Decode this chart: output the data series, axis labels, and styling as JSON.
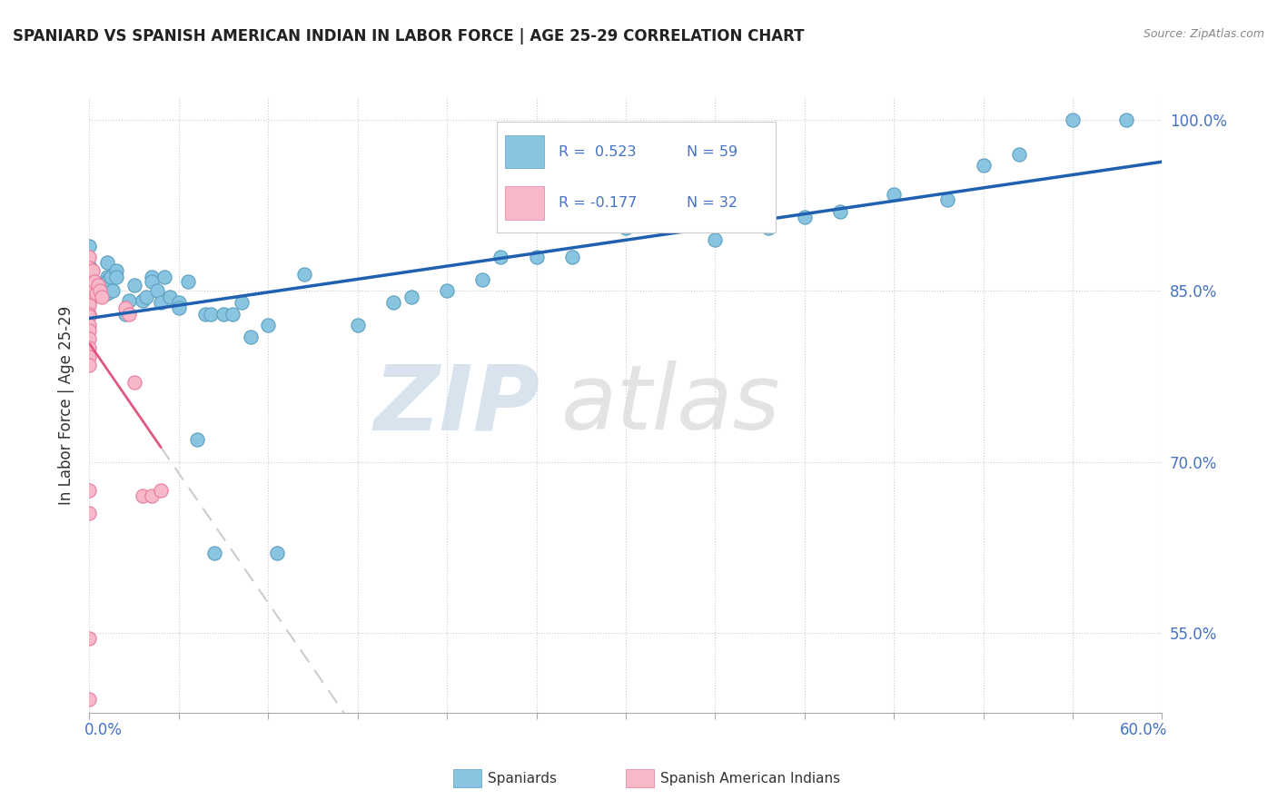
{
  "title": "SPANIARD VS SPANISH AMERICAN INDIAN IN LABOR FORCE | AGE 25-29 CORRELATION CHART",
  "source": "Source: ZipAtlas.com",
  "ylabel": "In Labor Force | Age 25-29",
  "legend_blue_r": "R =  0.523",
  "legend_blue_n": "N = 59",
  "legend_pink_r": "R = -0.177",
  "legend_pink_n": "N = 32",
  "legend_label_blue": "Spaniards",
  "legend_label_pink": "Spanish American Indians",
  "blue_scatter": [
    [
      0.0,
      0.889
    ],
    [
      0.0,
      0.872
    ],
    [
      0.0,
      0.872
    ],
    [
      0.0,
      0.868
    ],
    [
      0.01,
      0.875
    ],
    [
      0.01,
      0.862
    ],
    [
      0.01,
      0.858
    ],
    [
      0.01,
      0.853
    ],
    [
      0.01,
      0.848
    ],
    [
      0.01,
      0.858
    ],
    [
      0.012,
      0.862
    ],
    [
      0.013,
      0.85
    ],
    [
      0.015,
      0.868
    ],
    [
      0.015,
      0.862
    ],
    [
      0.02,
      0.83
    ],
    [
      0.022,
      0.842
    ],
    [
      0.025,
      0.855
    ],
    [
      0.03,
      0.842
    ],
    [
      0.032,
      0.845
    ],
    [
      0.035,
      0.862
    ],
    [
      0.035,
      0.858
    ],
    [
      0.038,
      0.85
    ],
    [
      0.04,
      0.84
    ],
    [
      0.042,
      0.862
    ],
    [
      0.045,
      0.845
    ],
    [
      0.05,
      0.84
    ],
    [
      0.05,
      0.835
    ],
    [
      0.055,
      0.858
    ],
    [
      0.06,
      0.72
    ],
    [
      0.065,
      0.83
    ],
    [
      0.068,
      0.83
    ],
    [
      0.07,
      0.62
    ],
    [
      0.075,
      0.83
    ],
    [
      0.08,
      0.83
    ],
    [
      0.085,
      0.84
    ],
    [
      0.09,
      0.81
    ],
    [
      0.1,
      0.82
    ],
    [
      0.105,
      0.62
    ],
    [
      0.12,
      0.865
    ],
    [
      0.15,
      0.82
    ],
    [
      0.17,
      0.84
    ],
    [
      0.18,
      0.845
    ],
    [
      0.2,
      0.85
    ],
    [
      0.22,
      0.86
    ],
    [
      0.23,
      0.88
    ],
    [
      0.25,
      0.88
    ],
    [
      0.27,
      0.88
    ],
    [
      0.3,
      0.905
    ],
    [
      0.32,
      0.91
    ],
    [
      0.35,
      0.895
    ],
    [
      0.38,
      0.905
    ],
    [
      0.4,
      0.915
    ],
    [
      0.42,
      0.92
    ],
    [
      0.45,
      0.935
    ],
    [
      0.48,
      0.93
    ],
    [
      0.5,
      0.96
    ],
    [
      0.52,
      0.97
    ],
    [
      0.55,
      1.0
    ],
    [
      0.58,
      1.0
    ]
  ],
  "pink_scatter": [
    [
      0.0,
      0.88
    ],
    [
      0.0,
      0.87
    ],
    [
      0.0,
      0.862
    ],
    [
      0.0,
      0.858
    ],
    [
      0.0,
      0.855
    ],
    [
      0.0,
      0.85
    ],
    [
      0.0,
      0.84
    ],
    [
      0.0,
      0.838
    ],
    [
      0.0,
      0.83
    ],
    [
      0.0,
      0.828
    ],
    [
      0.0,
      0.82
    ],
    [
      0.0,
      0.815
    ],
    [
      0.0,
      0.808
    ],
    [
      0.0,
      0.8
    ],
    [
      0.0,
      0.792
    ],
    [
      0.0,
      0.785
    ],
    [
      0.0,
      0.675
    ],
    [
      0.0,
      0.655
    ],
    [
      0.0,
      0.545
    ],
    [
      0.0,
      0.492
    ],
    [
      0.002,
      0.868
    ],
    [
      0.003,
      0.858
    ],
    [
      0.004,
      0.848
    ],
    [
      0.005,
      0.855
    ],
    [
      0.006,
      0.85
    ],
    [
      0.007,
      0.845
    ],
    [
      0.02,
      0.835
    ],
    [
      0.022,
      0.83
    ],
    [
      0.025,
      0.77
    ],
    [
      0.03,
      0.67
    ],
    [
      0.035,
      0.67
    ],
    [
      0.04,
      0.675
    ]
  ],
  "xmin": 0.0,
  "xmax": 0.6,
  "ymin": 0.48,
  "ymax": 1.02,
  "yticks": [
    0.55,
    0.7,
    0.85,
    1.0
  ],
  "ytick_labels": [
    "55.0%",
    "70.0%",
    "85.0%",
    "100.0%"
  ],
  "xtick_count": 13,
  "watermark_zip": "ZIP",
  "watermark_atlas": "atlas",
  "bg_color": "#ffffff",
  "blue_color": "#89c4e1",
  "pink_color": "#f7b8c8",
  "blue_edge": "#5a9fc0",
  "pink_edge": "#e87aa0",
  "trend_blue": "#2060b0",
  "trend_pink": "#e05880",
  "tick_color": "#4472c4",
  "grid_color": "#cccccc",
  "title_color": "#222222",
  "source_color": "#888888",
  "legend_text_color": "#333333",
  "legend_r_color": "#4472c4",
  "legend_n_color": "#4472c4"
}
